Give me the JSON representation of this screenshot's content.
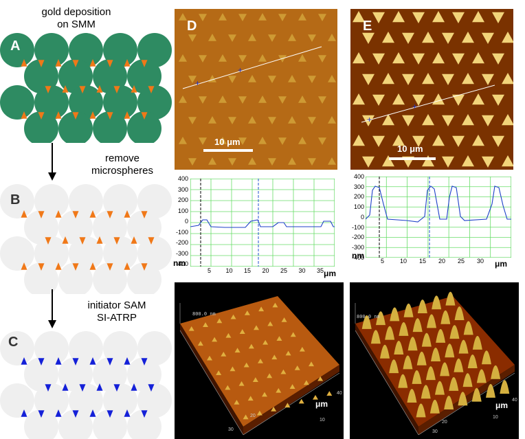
{
  "schematic": {
    "step1_line1": "gold deposition",
    "step1_line2": "on SMM",
    "step2_line1": "remove",
    "step2_line2": "microspheres",
    "step3_line1": "initiator SAM",
    "step3_line2": "SI-ATRP",
    "labels": [
      "A",
      "B",
      "C"
    ],
    "colors": {
      "green": "#2e8b62",
      "orange": "#f07818",
      "blue": "#1420d8",
      "sphere_light": "#efefef"
    }
  },
  "afm": {
    "label_d": "D",
    "label_e": "E",
    "scalebar_d": "10 μm",
    "scalebar_e": "10 μm"
  },
  "profile_d": {
    "yticks": [
      "400",
      "300",
      "200",
      "100",
      "0",
      "-100",
      "-200",
      "-300",
      "-400"
    ],
    "ylabel": "nm",
    "xticks": [
      "5",
      "10",
      "15",
      "20",
      "25",
      "30",
      "35"
    ],
    "xlabel": "μm"
  },
  "profile_e": {
    "yticks": [
      "400",
      "300",
      "200",
      "100",
      "0",
      "-100",
      "-200",
      "-300",
      "-400"
    ],
    "ylabel": "nm",
    "xticks": [
      "5",
      "10",
      "15",
      "20",
      "25",
      "30"
    ],
    "xlabel": "μm"
  },
  "view3d_left": {
    "zlabel": "800.0 nm",
    "axis_ticks": [
      "10",
      "20",
      "30",
      "40"
    ],
    "unit": "μm"
  },
  "view3d_right": {
    "zlabel": "800.0 nm",
    "axis_ticks": [
      "10",
      "20",
      "30",
      "40"
    ],
    "unit": "μm"
  }
}
